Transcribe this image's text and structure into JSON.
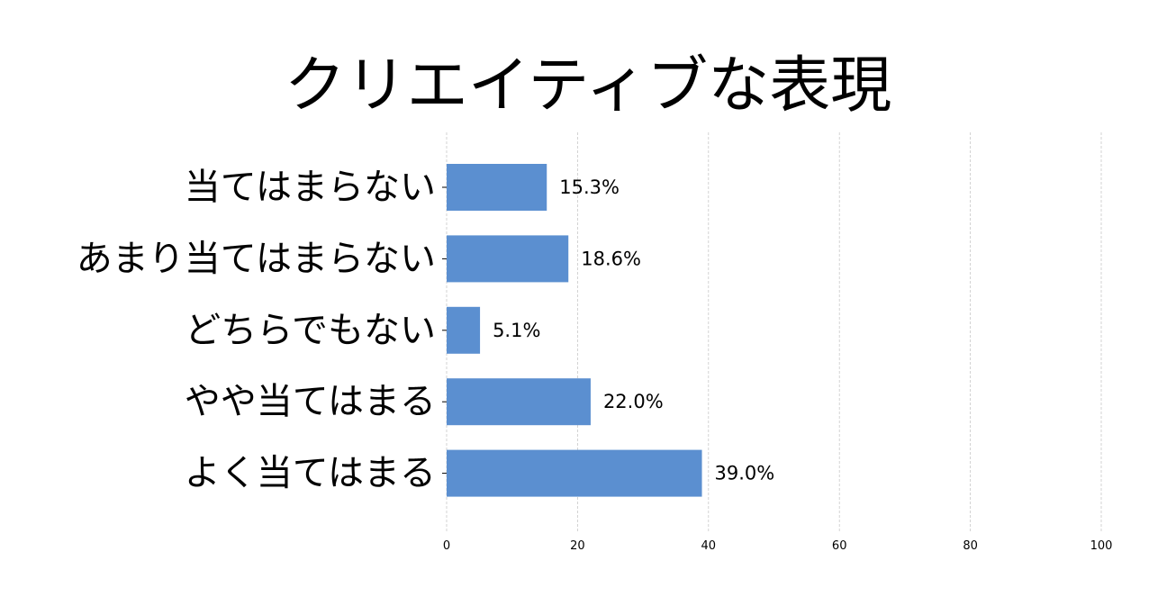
{
  "chart_data": {
    "type": "bar",
    "orientation": "horizontal",
    "title": "クリエイティブな表現",
    "categories": [
      "当てはまらない",
      "あまり当てはまらない",
      "どちらでもない",
      "やや当てはまる",
      "よく当てはまる"
    ],
    "values": [
      15.3,
      18.6,
      5.1,
      22.0,
      39.0
    ],
    "value_labels": [
      "15.3%",
      "18.6%",
      "5.1%",
      "22.0%",
      "39.0%"
    ],
    "xlim": [
      0,
      100
    ],
    "xticks": [
      0,
      20,
      40,
      60,
      80,
      100
    ],
    "xtick_labels": [
      "0",
      "20",
      "40",
      "60",
      "80",
      "100"
    ],
    "xlabel": "",
    "ylabel": "",
    "grid": "vertical dashed",
    "legend": "none",
    "bar_color": "#5b8fd0"
  }
}
